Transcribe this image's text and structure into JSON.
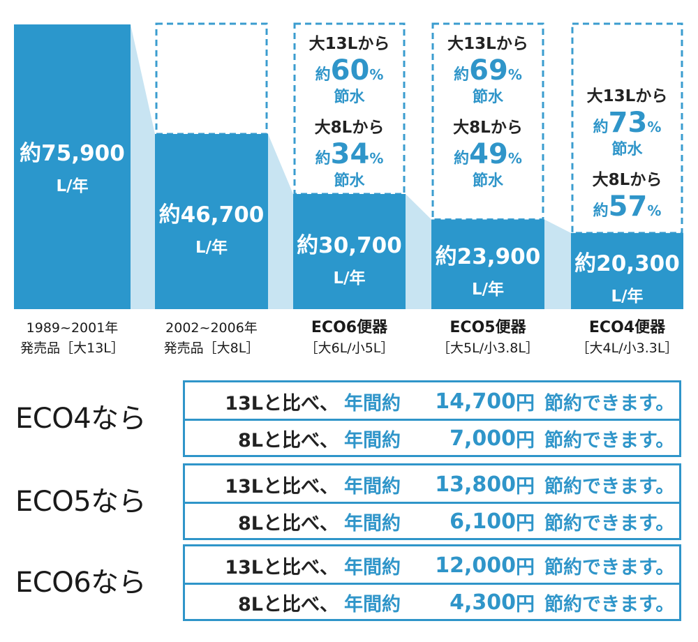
{
  "chart_data": {
    "type": "bar",
    "categories": [
      {
        "line1": "1989~2001年",
        "line2": "発売品［大13L］"
      },
      {
        "line1": "2002~2006年",
        "line2": "発売品［大8L］"
      },
      {
        "line1": "ECO6便器",
        "line2": "［大6L/小5L］"
      },
      {
        "line1": "ECO5便器",
        "line2": "［大5L/小3.8L］"
      },
      {
        "line1": "ECO4便器",
        "line2": "［大4L/小3.3L］"
      }
    ],
    "values": [
      75900,
      46700,
      30700,
      23900,
      20300
    ],
    "value_labels": [
      "約75,900",
      "約46,700",
      "約30,700",
      "約23,900",
      "約20,300"
    ],
    "unit_label": "L/年",
    "ref_max": 75900,
    "annotations": [
      null,
      null,
      [
        {
          "from": "大13Lから",
          "prefix": "約",
          "pct": "60",
          "sign": "%",
          "suffix": "節水"
        },
        {
          "from": "大8Lから",
          "prefix": "約",
          "pct": "34",
          "sign": "%",
          "suffix": "節水"
        }
      ],
      [
        {
          "from": "大13Lから",
          "prefix": "約",
          "pct": "69",
          "sign": "%",
          "suffix": "節水"
        },
        {
          "from": "大8Lから",
          "prefix": "約",
          "pct": "49",
          "sign": "%",
          "suffix": "節水"
        }
      ],
      [
        {
          "from": "大13Lから",
          "prefix": "約",
          "pct": "73",
          "sign": "%",
          "suffix": "節水"
        },
        {
          "from": "大8Lから",
          "prefix": "約",
          "pct": "57",
          "sign": "%",
          "suffix": ""
        }
      ]
    ],
    "colors": {
      "bar": "#2b97cc",
      "connector": "#c8e4f2",
      "dashed": "#3a9ccf",
      "text_blue": "#2f95c9"
    }
  },
  "savings": [
    {
      "label": "ECO4なら",
      "rows": [
        {
          "lead": "13Lと比べ、",
          "mid": "年間約",
          "amount": "14,700",
          "unit": "円",
          "tail": "節約できます。"
        },
        {
          "lead": "8Lと比べ、",
          "mid": "年間約",
          "amount": "7,000",
          "unit": "円",
          "tail": "節約できます。"
        }
      ]
    },
    {
      "label": "ECO5なら",
      "rows": [
        {
          "lead": "13Lと比べ、",
          "mid": "年間約",
          "amount": "13,800",
          "unit": "円",
          "tail": "節約できます。"
        },
        {
          "lead": "8Lと比べ、",
          "mid": "年間約",
          "amount": "6,100",
          "unit": "円",
          "tail": "節約できます。"
        }
      ]
    },
    {
      "label": "ECO6なら",
      "rows": [
        {
          "lead": "13Lと比べ、",
          "mid": "年間約",
          "amount": "12,000",
          "unit": "円",
          "tail": "節約できます。"
        },
        {
          "lead": "8Lと比べ、",
          "mid": "年間約",
          "amount": "4,300",
          "unit": "円",
          "tail": "節約できます。"
        }
      ]
    }
  ]
}
